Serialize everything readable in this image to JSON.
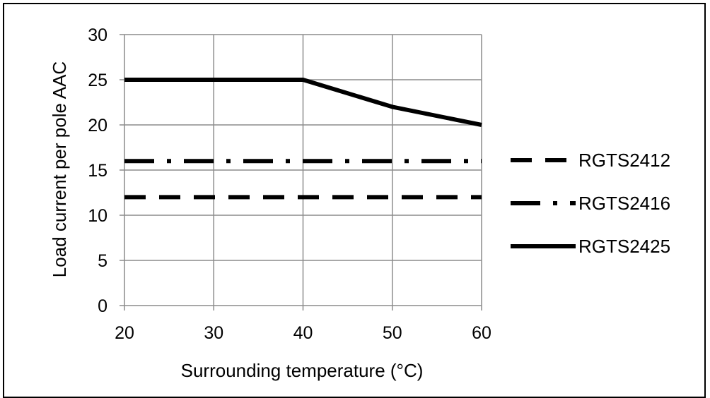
{
  "chart_data": {
    "type": "line",
    "title": "",
    "xlabel": "Surrounding temperature (°C)",
    "ylabel": "Load current per pole AAC",
    "xlim": [
      20,
      60
    ],
    "ylim": [
      0,
      30
    ],
    "x_ticks": [
      20,
      30,
      40,
      50,
      60
    ],
    "y_ticks": [
      0,
      5,
      10,
      15,
      20,
      25,
      30
    ],
    "grid": true,
    "legend_position": "right",
    "series": [
      {
        "name": "RGTS2412",
        "style": "dashed",
        "color": "#000000",
        "x": [
          20,
          60
        ],
        "y": [
          12,
          12
        ]
      },
      {
        "name": "RGTS2416",
        "style": "dash-dot",
        "color": "#000000",
        "x": [
          20,
          60
        ],
        "y": [
          16,
          16
        ]
      },
      {
        "name": "RGTS2425",
        "style": "solid",
        "color": "#000000",
        "x": [
          20,
          40,
          50,
          60
        ],
        "y": [
          25,
          25,
          22,
          20
        ]
      }
    ]
  }
}
